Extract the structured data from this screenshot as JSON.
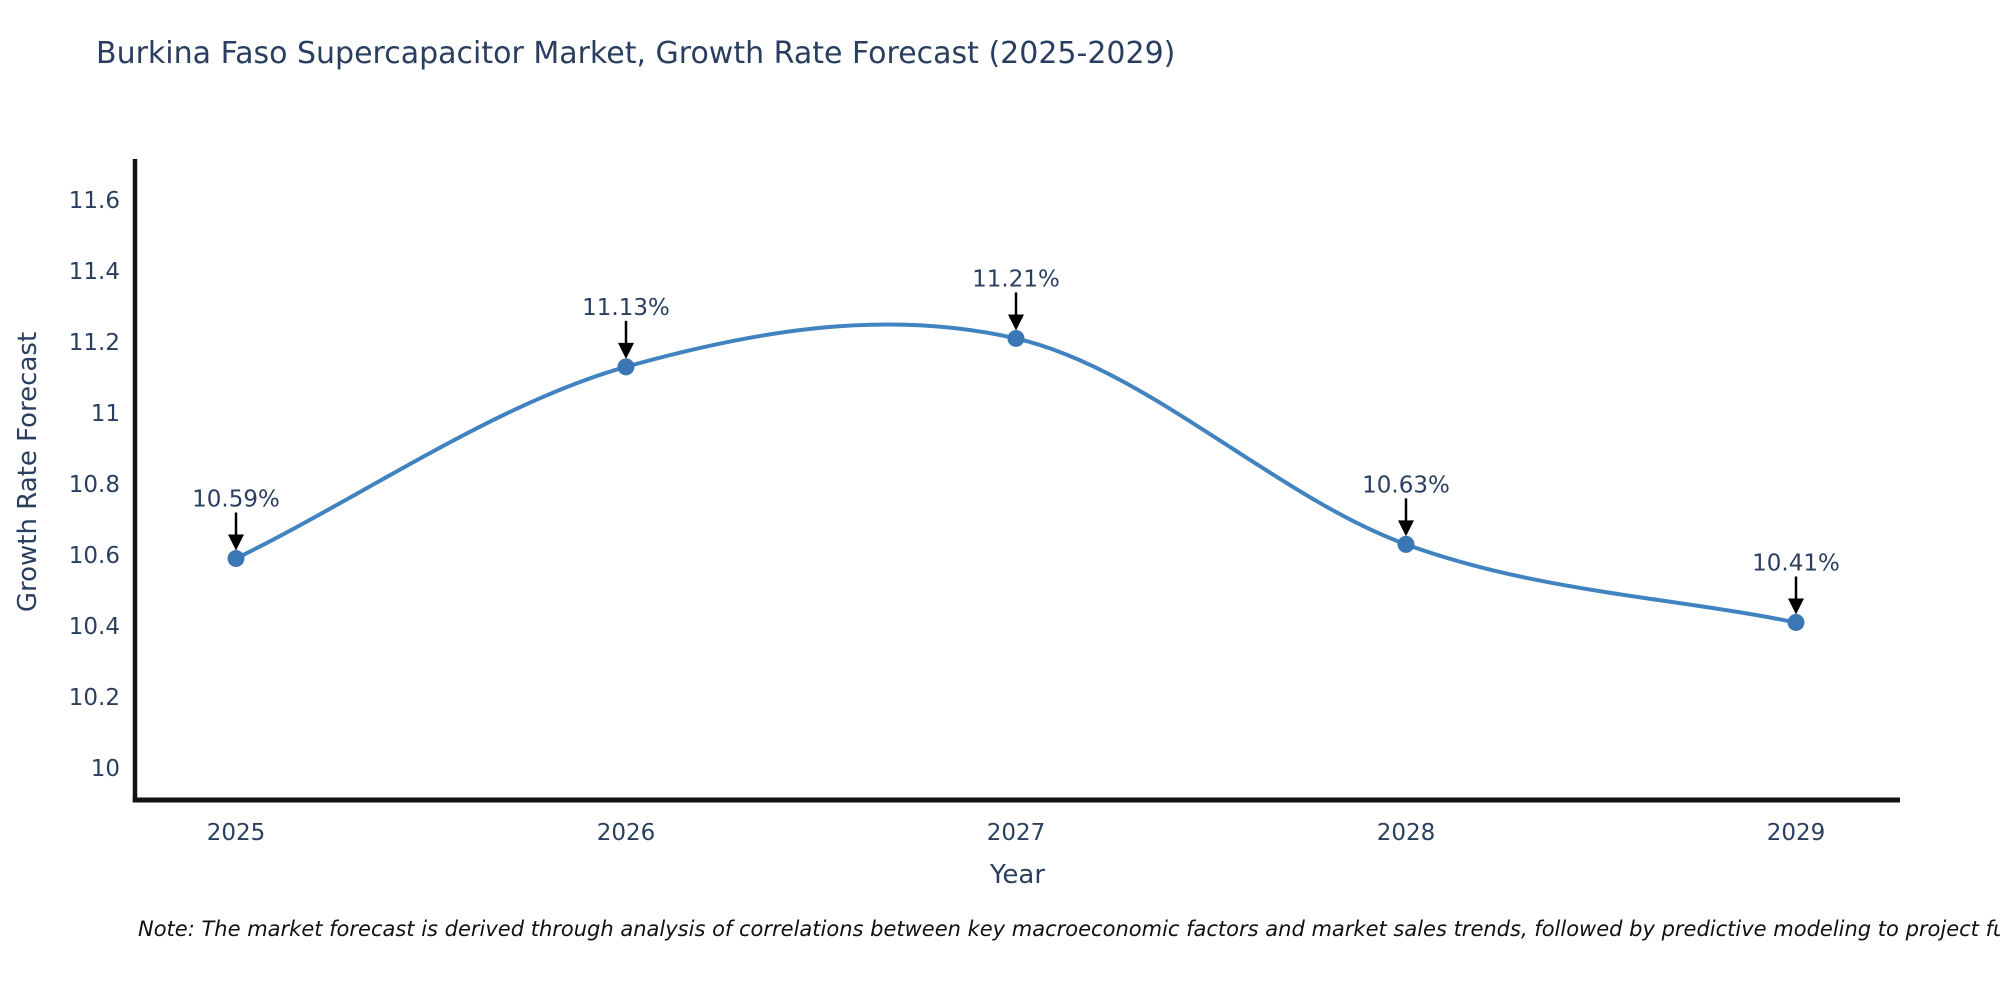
{
  "note": "Note: The market forecast is derived through analysis of correlations between key macroeconomic factors and market sales trends, followed by predictive modeling to project future sales.",
  "chart_data": {
    "type": "line",
    "title": "Burkina Faso Supercapacitor Market, Growth Rate Forecast (2025-2029)",
    "xlabel": "Year",
    "ylabel": "Growth Rate Forecast",
    "x": [
      2025,
      2026,
      2027,
      2028,
      2029
    ],
    "y": [
      10.59,
      11.13,
      11.21,
      10.63,
      10.41
    ],
    "point_labels": [
      "10.59%",
      "11.13%",
      "11.21%",
      "10.63%",
      "10.41%"
    ],
    "xtick_labels": [
      "2025",
      "2026",
      "2027",
      "2028",
      "2029"
    ],
    "ytick_values": [
      10,
      10.2,
      10.4,
      10.6,
      10.8,
      11,
      11.2,
      11.4,
      11.6
    ],
    "ytick_labels": [
      "10",
      "10.2",
      "10.4",
      "10.6",
      "10.8",
      "11",
      "11.2",
      "11.4",
      "11.6"
    ],
    "ylim": [
      9.9,
      11.72
    ],
    "curve": "spline",
    "grid": false,
    "legend": "none",
    "line_color": "#4083c0",
    "marker_color": "#3b77b4",
    "axis_color": "#131313",
    "text_color": "#2a3f5f",
    "arrow_color": "#000000"
  }
}
